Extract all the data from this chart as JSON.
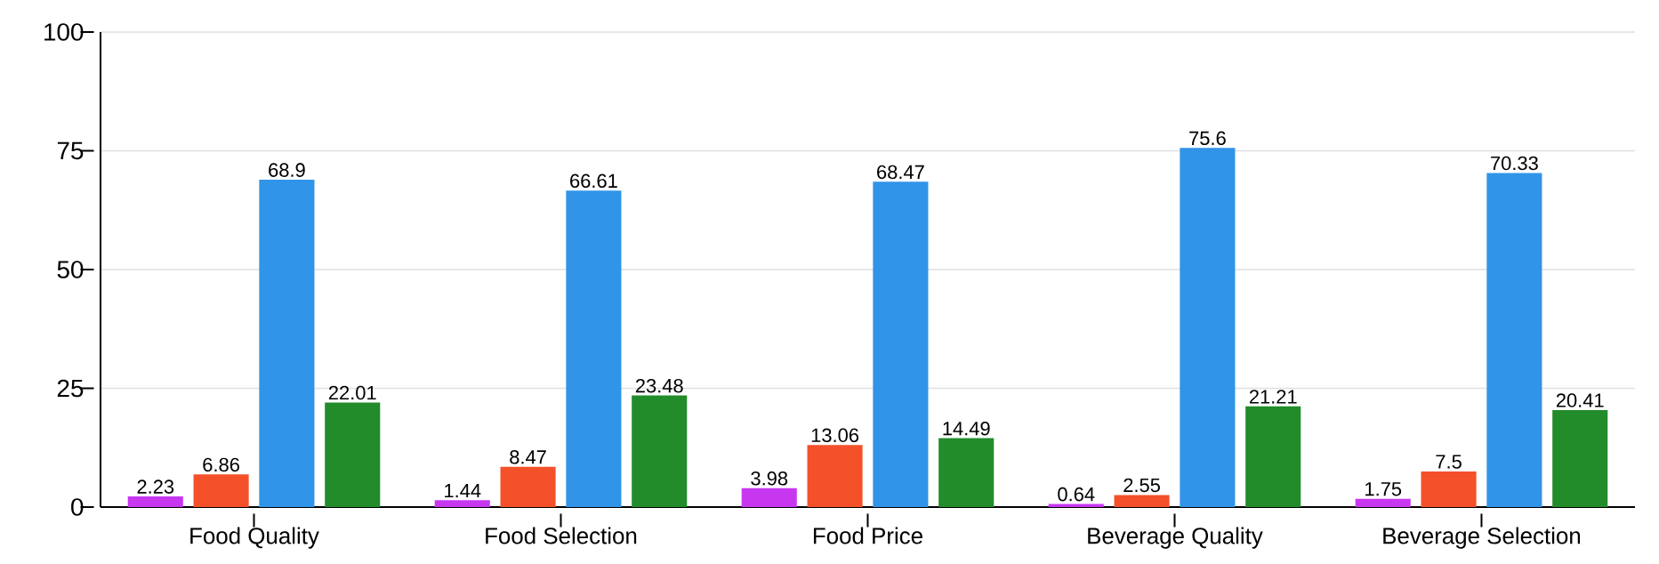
{
  "chart_data": {
    "type": "bar",
    "categories": [
      "Food Quality",
      "Food Selection",
      "Food Price",
      "Beverage Quality",
      "Beverage Selection"
    ],
    "series": [
      {
        "color": "#c837f0",
        "values": [
          2.23,
          1.44,
          3.98,
          0.64,
          1.75
        ]
      },
      {
        "color": "#f4502a",
        "values": [
          6.86,
          8.47,
          13.06,
          2.55,
          7.5
        ]
      },
      {
        "color": "#3094e8",
        "values": [
          68.9,
          66.61,
          68.47,
          75.6,
          70.33
        ]
      },
      {
        "color": "#228b2a",
        "values": [
          22.01,
          23.48,
          14.49,
          21.21,
          20.41
        ]
      }
    ],
    "ylim": [
      0,
      100
    ],
    "yticks": [
      0,
      25,
      50,
      75,
      100
    ],
    "grid": "y",
    "data_labels": true
  }
}
